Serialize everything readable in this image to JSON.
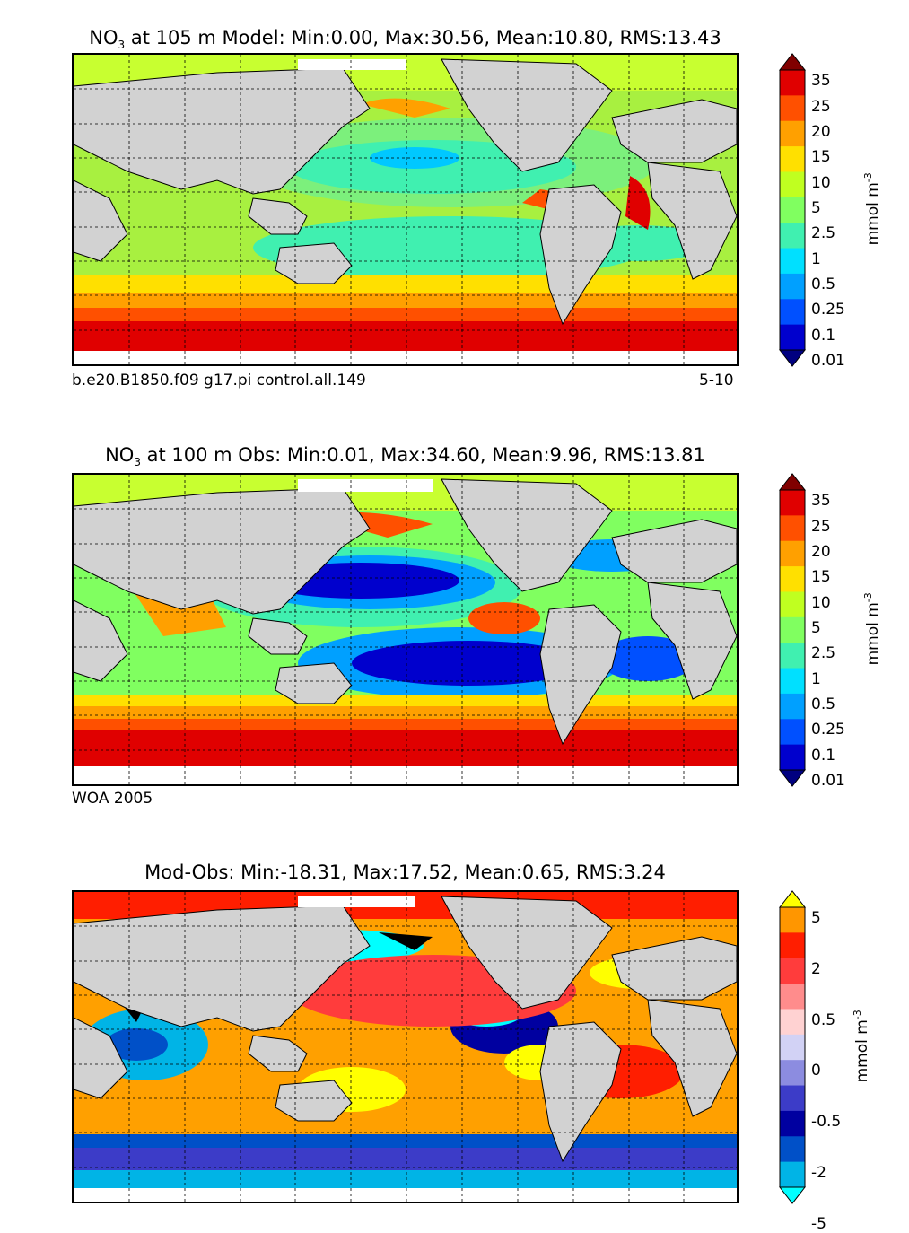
{
  "chart_data": [
    {
      "type": "heatmap",
      "title_prefix": "NO",
      "title_sub": "3",
      "title_rest": " at 105 m Model: Min:0.00, Max:30.56, Mean:10.80, RMS:13.43",
      "variable": "NO3",
      "depth": "105 m",
      "source": "Model",
      "stats": {
        "min": 0.0,
        "max": 30.56,
        "mean": 10.8,
        "rms": 13.43
      },
      "caption_left": "b.e20.B1850.f09 g17.pi control.all.149",
      "caption_right": "5-10",
      "colorbar": {
        "ticks": [
          "35",
          "25",
          "20",
          "15",
          "10",
          "5",
          "2.5",
          "1",
          "0.5",
          "0.25",
          "0.1",
          "0.01"
        ],
        "colors": [
          "#000080",
          "#0000cd",
          "#0050ff",
          "#00a0ff",
          "#00e0ff",
          "#40f0b0",
          "#80ff60",
          "#c0ff20",
          "#ffe000",
          "#ffa000",
          "#ff5000",
          "#e00000",
          "#800000"
        ],
        "unit": "mmol m",
        "unit_exp": "-3",
        "extend": "both"
      }
    },
    {
      "type": "heatmap",
      "title_prefix": "NO",
      "title_sub": "3",
      "title_rest": " at 100 m Obs: Min:0.01, Max:34.60, Mean:9.96, RMS:13.81",
      "variable": "NO3",
      "depth": "100 m",
      "source": "Obs",
      "stats": {
        "min": 0.01,
        "max": 34.6,
        "mean": 9.96,
        "rms": 13.81
      },
      "caption_left": "WOA 2005",
      "colorbar": {
        "ticks": [
          "35",
          "25",
          "20",
          "15",
          "10",
          "5",
          "2.5",
          "1",
          "0.5",
          "0.25",
          "0.1",
          "0.01"
        ],
        "colors": [
          "#000080",
          "#0000cd",
          "#0050ff",
          "#00a0ff",
          "#00e0ff",
          "#40f0b0",
          "#80ff60",
          "#c0ff20",
          "#ffe000",
          "#ffa000",
          "#ff5000",
          "#e00000",
          "#800000"
        ],
        "unit": "mmol m",
        "unit_exp": "-3",
        "extend": "both"
      }
    },
    {
      "type": "heatmap",
      "title_text": "Mod-Obs: Min:-18.31, Max:17.52, Mean:0.65, RMS:3.24",
      "source": "Mod-Obs",
      "stats": {
        "min": -18.31,
        "max": 17.52,
        "mean": 0.65,
        "rms": 3.24
      },
      "colorbar": {
        "ticks": [
          "5",
          "2",
          "0.5",
          "0",
          "-0.5",
          "-2",
          "-5"
        ],
        "colors": [
          "#00ffff",
          "#00b4e6",
          "#0050c8",
          "#0000a0",
          "#3c3cc8",
          "#8c8ce0",
          "#d2d2f5",
          "#ffd2d2",
          "#ff8c8c",
          "#ff3c3c",
          "#ff1e00",
          "#ff9600",
          "#ffff00"
        ],
        "unit": "mmol m",
        "unit_exp": "-3",
        "extend": "both"
      }
    }
  ]
}
